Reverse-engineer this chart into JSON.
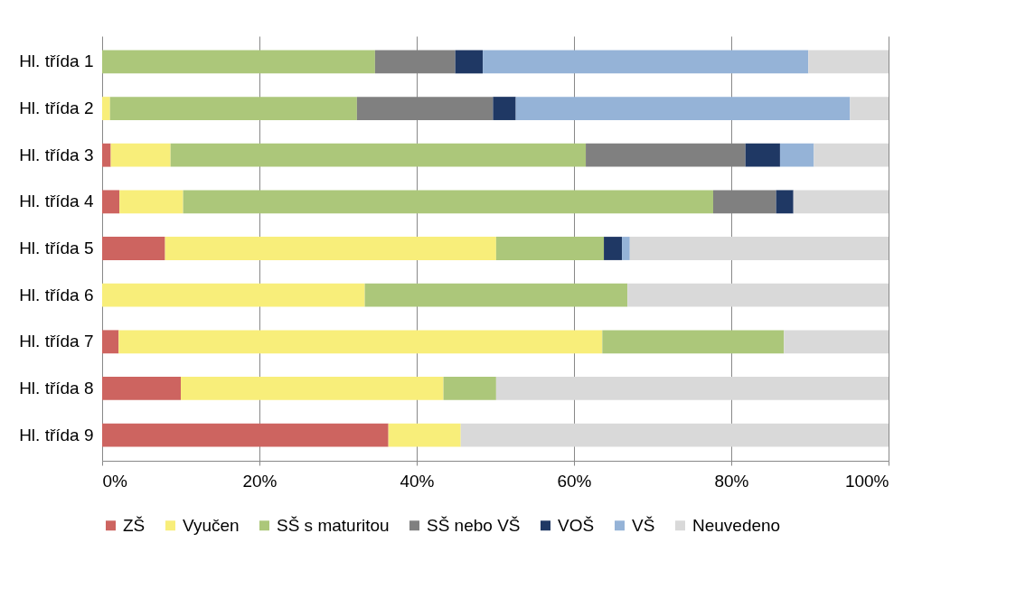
{
  "chart_data": {
    "type": "bar",
    "orientation": "horizontal",
    "stacked": true,
    "grid": "x",
    "legend": "bottom",
    "categories": [
      "Hl. třída 1",
      "Hl. třída 2",
      "Hl. třída 3",
      "Hl. třída 4",
      "Hl. třída 5",
      "Hl. třída 6",
      "Hl. třída 7",
      "Hl. třída 8",
      "Hl. třída 9"
    ],
    "xlim": [
      0,
      100
    ],
    "xticks": [
      {
        "value": 0,
        "label": "0%"
      },
      {
        "value": 20,
        "label": "20%"
      },
      {
        "value": 40,
        "label": "40%"
      },
      {
        "value": 60,
        "label": "60%"
      },
      {
        "value": 80,
        "label": "80%"
      },
      {
        "value": 100,
        "label": "100%"
      }
    ],
    "series": [
      {
        "name": "ZŠ",
        "color": "#cd6460",
        "values": [
          null,
          null,
          1.1,
          2.2,
          8.0,
          null,
          2.1,
          10.0,
          36.4
        ]
      },
      {
        "name": "Vyučen",
        "color": "#f8ee7a",
        "values": [
          null,
          1.0,
          7.6,
          8.1,
          42.1,
          33.4,
          61.5,
          33.4,
          9.2
        ]
      },
      {
        "name": "SŠ s maturitou",
        "color": "#acc77a",
        "values": [
          34.7,
          31.4,
          52.8,
          67.4,
          13.7,
          33.4,
          23.1,
          6.7,
          null
        ]
      },
      {
        "name": "SŠ nebo VŠ",
        "color": "#808080",
        "values": [
          10.2,
          17.3,
          20.3,
          8.0,
          null,
          null,
          null,
          null,
          null
        ]
      },
      {
        "name": "VOŠ",
        "color": "#1f3864",
        "values": [
          3.5,
          2.9,
          4.4,
          2.2,
          2.3,
          null,
          null,
          null,
          null
        ]
      },
      {
        "name": "VŠ",
        "color": "#95b3d7",
        "values": [
          41.4,
          42.5,
          4.3,
          null,
          1.0,
          null,
          null,
          null,
          null
        ]
      },
      {
        "name": "Neuvedeno",
        "color": "#d9d9d9",
        "values": [
          10.2,
          4.9,
          9.5,
          12.1,
          32.9,
          33.2,
          13.3,
          49.9,
          54.4
        ]
      }
    ]
  }
}
